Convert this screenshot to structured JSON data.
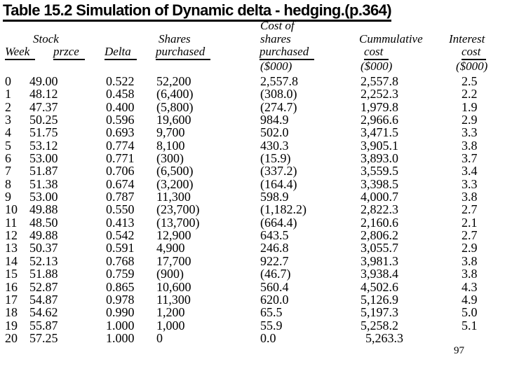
{
  "title": "Table 15.2 Simulation of Dynamic delta - hedging.(p.364)",
  "page_number": "97",
  "table": {
    "header": {
      "week": "Week",
      "stock_top": "Stock",
      "price": "przce",
      "delta": "Delta",
      "shares_top": "Shares",
      "shares_bottom": "purchased",
      "cost_line1": "Cost of",
      "cost_line2": "shares",
      "cost_line3": "purchased",
      "cost_unit": "($000)",
      "cumulative_top": "Cummulative",
      "cumulative_bottom": "cost",
      "cumulative_unit": "($000)",
      "interest_top": "Interest",
      "interest_bottom": "cost",
      "interest_unit": "($000)"
    },
    "columns": [
      "Week",
      "Stock przce",
      "Delta",
      "Shares purchased",
      "Cost of shares purchased ($000)",
      "Cummulative cost ($000)",
      "Interest cost ($000)"
    ],
    "rows": [
      [
        "0",
        "49.00",
        "0.522",
        "52,200",
        "2,557.8",
        "2,557.8",
        "2.5"
      ],
      [
        "1",
        "48.12",
        "0.458",
        "(6,400)",
        "(308.0)",
        "2,252.3",
        "2.2"
      ],
      [
        "2",
        "47.37",
        "0.400",
        "(5,800)",
        "(274.7)",
        "1,979.8",
        "1.9"
      ],
      [
        "3",
        "50.25",
        "0.596",
        "19,600",
        "984.9",
        "2,966.6",
        "2.9"
      ],
      [
        "4",
        "51.75",
        "0.693",
        "9,700",
        "502.0",
        "3,471.5",
        "3.3"
      ],
      [
        "5",
        "53.12",
        "0.774",
        "8,100",
        "430.3",
        "3,905.1",
        "3.8"
      ],
      [
        "6",
        "53.00",
        "0.771",
        "(300)",
        "(15.9)",
        "3,893.0",
        "3.7"
      ],
      [
        "7",
        "51.87",
        "0.706",
        "(6,500)",
        "(337.2)",
        "3,559.5",
        "3.4"
      ],
      [
        "8",
        "51.38",
        "0.674",
        "(3,200)",
        "(164.4)",
        "3,398.5",
        "3.3"
      ],
      [
        "9",
        "53.00",
        "0.787",
        "11,300",
        "598.9",
        "4,000.7",
        "3.8"
      ],
      [
        "10",
        "49.88",
        "0.550",
        "(23,700)",
        "(1,182.2)",
        "2,822.3",
        "2.7"
      ],
      [
        "11",
        "48.50",
        "0.413",
        "(13,700)",
        "(664.4)",
        "2,160.6",
        "2.1"
      ],
      [
        "12",
        "49.88",
        "0.542",
        "12,900",
        "643.5",
        "2,806.2",
        "2.7"
      ],
      [
        "13",
        "50.37",
        "0.591",
        "4,900",
        "246.8",
        "3,055.7",
        "2.9"
      ],
      [
        "14",
        "52.13",
        "0.768",
        "17,700",
        "922.7",
        "3,981.3",
        "3.8"
      ],
      [
        "15",
        "51.88",
        "0.759",
        "(900)",
        "(46.7)",
        "3,938.4",
        "3.8"
      ],
      [
        "16",
        "52.87",
        "0.865",
        "10,600",
        "560.4",
        "4,502.6",
        "4.3"
      ],
      [
        "17",
        "54.87",
        "0.978",
        "11,300",
        "620.0",
        "5,126.9",
        "4.9"
      ],
      [
        "18",
        "54.62",
        "0.990",
        "1,200",
        "65.5",
        "5,197.3",
        "5.0"
      ],
      [
        "19",
        "55.87",
        "1.000",
        "1,000",
        "55.9",
        "5,258.2",
        "5.1"
      ],
      [
        "20",
        "57.25",
        "1.000",
        "0",
        "0.0",
        "5,263.3",
        ""
      ]
    ]
  }
}
